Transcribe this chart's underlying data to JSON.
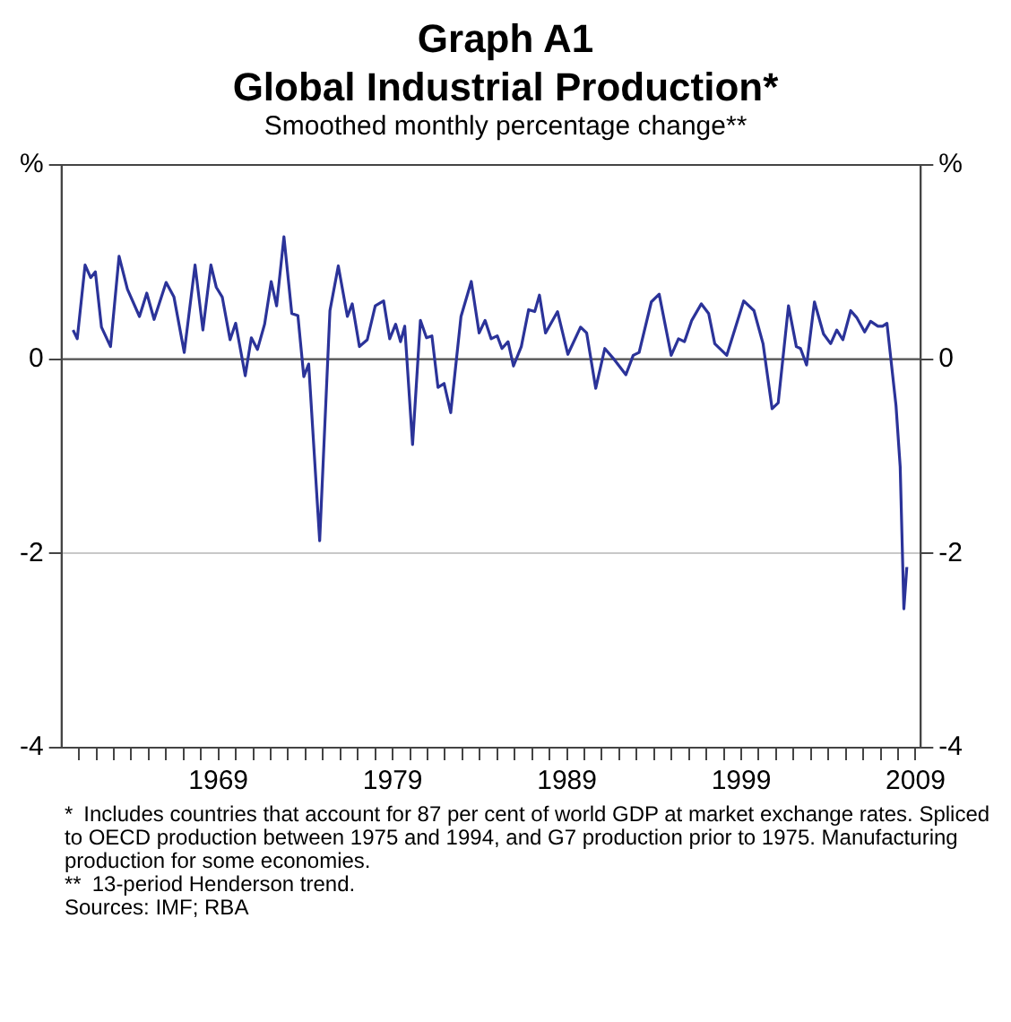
{
  "chart_data": {
    "type": "line",
    "title": "Graph A1\nGlobal Industrial Production*",
    "subtitle": "Smoothed monthly percentage change**",
    "annotations": [
      "* Includes countries that account for 87 per cent of world GDP at market exchange rates. Spliced to OECD production between 1975 and 1994, and G7 production prior to 1975. Manufacturing production for some economies.",
      "** 13-period Henderson trend.",
      "Sources: IMF; RBA"
    ],
    "series": [
      {
        "color": "#2b3399",
        "x": [
          1960.66,
          1960.9,
          1961.35,
          1961.67,
          1961.94,
          1962.29,
          1962.81,
          1963.3,
          1963.78,
          1964.47,
          1964.89,
          1965.31,
          1966.0,
          1966.45,
          1967.04,
          1967.66,
          1968.11,
          1968.57,
          1968.88,
          1969.22,
          1969.67,
          1969.99,
          1970.54,
          1970.89,
          1971.24,
          1971.65,
          1972.03,
          1972.34,
          1972.76,
          1973.21,
          1973.56,
          1973.9,
          1974.18,
          1974.81,
          1975.4,
          1975.88,
          1976.4,
          1976.68,
          1977.09,
          1977.54,
          1978.0,
          1978.48,
          1978.83,
          1979.17,
          1979.45,
          1979.69,
          1980.14,
          1980.59,
          1980.94,
          1981.25,
          1981.6,
          1981.95,
          1982.33,
          1982.92,
          1983.51,
          1983.96,
          1984.3,
          1984.65,
          1985.0,
          1985.27,
          1985.62,
          1985.93,
          1986.38,
          1986.8,
          1987.15,
          1987.42,
          1987.77,
          1988.46,
          1989.05,
          1989.78,
          1990.13,
          1990.65,
          1991.17,
          1991.65,
          1992.38,
          1992.8,
          1993.14,
          1993.84,
          1994.29,
          1994.98,
          1995.4,
          1995.74,
          1996.16,
          1996.71,
          1997.13,
          1997.48,
          1998.17,
          1999.14,
          1999.73,
          2000.25,
          2000.77,
          2001.12,
          2001.71,
          2002.16,
          2002.4,
          2002.75,
          2003.2,
          2003.72,
          2004.13,
          2004.48,
          2004.83,
          2005.28,
          2005.62,
          2006.08,
          2006.42,
          2006.84,
          2007.11,
          2007.36,
          2007.88,
          2008.12,
          2008.33,
          2008.5
        ],
        "values": [
          0.3,
          0.21,
          0.97,
          0.84,
          0.9,
          0.33,
          0.13,
          1.06,
          0.72,
          0.44,
          0.68,
          0.41,
          0.79,
          0.64,
          0.07,
          0.97,
          0.3,
          0.97,
          0.74,
          0.64,
          0.2,
          0.37,
          -0.17,
          0.22,
          0.1,
          0.36,
          0.8,
          0.55,
          1.26,
          0.47,
          0.45,
          -0.18,
          -0.05,
          -1.87,
          0.5,
          0.96,
          0.44,
          0.57,
          0.13,
          0.2,
          0.55,
          0.6,
          0.21,
          0.36,
          0.18,
          0.34,
          -0.88,
          0.4,
          0.22,
          0.24,
          -0.29,
          -0.25,
          -0.55,
          0.44,
          0.8,
          0.27,
          0.4,
          0.21,
          0.24,
          0.11,
          0.18,
          -0.07,
          0.13,
          0.51,
          0.49,
          0.66,
          0.27,
          0.49,
          0.05,
          0.33,
          0.27,
          -0.3,
          0.11,
          0.01,
          -0.16,
          0.04,
          0.07,
          0.59,
          0.67,
          0.04,
          0.21,
          0.18,
          0.4,
          0.57,
          0.47,
          0.16,
          0.04,
          0.6,
          0.5,
          0.16,
          -0.51,
          -0.45,
          0.55,
          0.13,
          0.11,
          -0.06,
          0.59,
          0.26,
          0.16,
          0.3,
          0.2,
          0.5,
          0.43,
          0.28,
          0.39,
          0.34,
          0.34,
          0.37,
          -0.48,
          -1.11,
          -2.57,
          -2.14
        ]
      }
    ],
    "xlim": [
      1960,
      2009.3
    ],
    "xticks": [
      {
        "value": 1961,
        "label": null
      },
      {
        "value": 1962,
        "label": null
      },
      {
        "value": 1963,
        "label": null
      },
      {
        "value": 1964,
        "label": null
      },
      {
        "value": 1965,
        "label": null
      },
      {
        "value": 1966,
        "label": null
      },
      {
        "value": 1967,
        "label": null
      },
      {
        "value": 1968,
        "label": null
      },
      1969,
      {
        "value": 1970,
        "label": null
      },
      {
        "value": 1971,
        "label": null
      },
      {
        "value": 1972,
        "label": null
      },
      {
        "value": 1973,
        "label": null
      },
      {
        "value": 1974,
        "label": null
      },
      {
        "value": 1975,
        "label": null
      },
      {
        "value": 1976,
        "label": null
      },
      {
        "value": 1977,
        "label": null
      },
      {
        "value": 1978,
        "label": null
      },
      1979,
      {
        "value": 1980,
        "label": null
      },
      {
        "value": 1981,
        "label": null
      },
      {
        "value": 1982,
        "label": null
      },
      {
        "value": 1983,
        "label": null
      },
      {
        "value": 1984,
        "label": null
      },
      {
        "value": 1985,
        "label": null
      },
      {
        "value": 1986,
        "label": null
      },
      {
        "value": 1987,
        "label": null
      },
      {
        "value": 1988,
        "label": null
      },
      1989,
      {
        "value": 1990,
        "label": null
      },
      {
        "value": 1991,
        "label": null
      },
      {
        "value": 1992,
        "label": null
      },
      {
        "value": 1993,
        "label": null
      },
      {
        "value": 1994,
        "label": null
      },
      {
        "value": 1995,
        "label": null
      },
      {
        "value": 1996,
        "label": null
      },
      {
        "value": 1997,
        "label": null
      },
      {
        "value": 1998,
        "label": null
      },
      1999,
      {
        "value": 2000,
        "label": null
      },
      {
        "value": 2001,
        "label": null
      },
      {
        "value": 2002,
        "label": null
      },
      {
        "value": 2003,
        "label": null
      },
      {
        "value": 2004,
        "label": null
      },
      {
        "value": 2005,
        "label": null
      },
      {
        "value": 2006,
        "label": null
      },
      {
        "value": 2007,
        "label": null
      },
      {
        "value": 2008,
        "label": null
      },
      2009
    ],
    "ylim": [
      -4,
      2
    ],
    "yticks": [
      -4,
      -2,
      0,
      {
        "value": 2,
        "label": "%"
      }
    ],
    "y2lim": [
      -4,
      2
    ],
    "y2ticks": [
      -4,
      -2,
      0,
      {
        "value": 2,
        "label": "%"
      }
    ],
    "ref_lines": [
      {
        "axis": "y",
        "value": 0,
        "color": "#555555"
      }
    ],
    "grid": "y",
    "legend": false,
    "marker": "none",
    "line_style": "solid"
  }
}
